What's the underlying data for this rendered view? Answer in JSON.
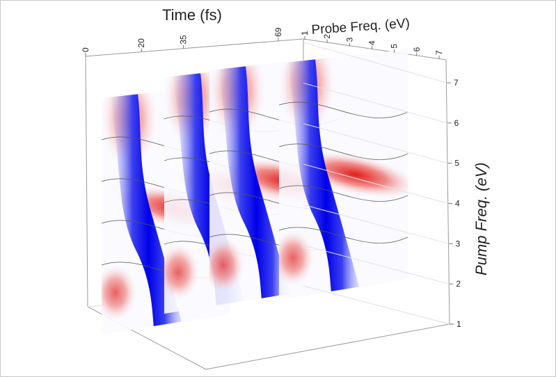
{
  "chart_data": {
    "type": "3d-slices",
    "time_axis": {
      "label": "Time (fs)",
      "lim": [
        0,
        78
      ],
      "ticks": [
        0,
        20,
        35,
        69
      ]
    },
    "probe_axis": {
      "label": "Probe Freq. (eV)",
      "lim": [
        1,
        7
      ],
      "ticks": [
        1,
        2,
        3,
        4,
        5,
        6,
        7
      ]
    },
    "pump_axis": {
      "label": "Pump Freq. (eV)",
      "lim": [
        1,
        7
      ],
      "ticks": [
        1,
        2,
        3,
        4,
        5,
        6,
        7
      ]
    }
  }
}
